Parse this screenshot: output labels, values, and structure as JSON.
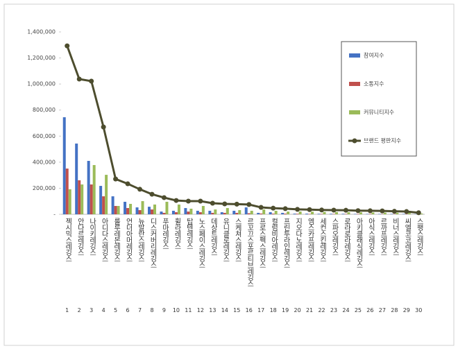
{
  "chart_data": {
    "type": "bar",
    "categories": [
      "젝시믹스레깅스",
      "안다르레깅스",
      "나이키레깅스",
      "아디다스레깅스",
      "룰루레몬레깅스",
      "언더아머레깅스",
      "뉴발란스레깅스",
      "디스커버리레깅스",
      "푸마레깅스",
      "휠라레깅스",
      "탑텐레깅스",
      "노스페이스레깅스",
      "데상트레깅스",
      "유니클로레깅스",
      "스케쳐스레깅스",
      "르꼬끄스포르티브레깅스",
      "프로스펙스레깅스",
      "컬럼비아레깅스",
      "프린투라인레깅스",
      "지오다노레깅스",
      "엠스카프레깅스",
      "세컨스킨레깅스",
      "스파오레깅스",
      "로라로라레깅스",
      "아키클래식레깅스",
      "아식스레깅스",
      "르까프레깅스",
      "비너스레깅스",
      "씨엘코코레깅스",
      "스팽스레깅스"
    ],
    "ranks": [
      1,
      2,
      3,
      4,
      5,
      6,
      7,
      8,
      9,
      10,
      11,
      12,
      13,
      14,
      15,
      16,
      17,
      18,
      19,
      20,
      21,
      22,
      23,
      24,
      25,
      26,
      27,
      28,
      29,
      30
    ],
    "series": [
      {
        "name": "참여지수",
        "color": "#4472c4",
        "type": "bar",
        "values": [
          745000,
          543000,
          410000,
          218000,
          138000,
          96000,
          53000,
          58000,
          21000,
          27000,
          48000,
          27000,
          27000,
          16000,
          27000,
          53000,
          11000,
          16000,
          11000,
          5000,
          5000,
          4000,
          4000,
          4000,
          3000,
          3000,
          3000,
          3000,
          3000,
          2000
        ]
      },
      {
        "name": "소통지수",
        "color": "#c0504d",
        "type": "bar",
        "values": [
          351000,
          261000,
          229000,
          138000,
          64000,
          48000,
          32000,
          37000,
          11000,
          16000,
          21000,
          16000,
          11000,
          11000,
          11000,
          8000,
          6000,
          5000,
          5000,
          4000,
          3000,
          3000,
          3000,
          3000,
          3000,
          3000,
          2000,
          2000,
          2000,
          1000
        ]
      },
      {
        "name": "커뮤니티지수",
        "color": "#9bbb59",
        "type": "bar",
        "values": [
          192000,
          229000,
          378000,
          303000,
          64000,
          80000,
          101000,
          75000,
          96000,
          75000,
          43000,
          64000,
          37000,
          48000,
          32000,
          27000,
          37000,
          27000,
          21000,
          21000,
          20000,
          18000,
          17000,
          16000,
          15000,
          14000,
          13000,
          12000,
          11000,
          6000
        ]
      },
      {
        "name": "브랜드 평판지수",
        "color": "#4d4d2e",
        "type": "line",
        "values": [
          1293000,
          1038000,
          1022000,
          670000,
          271000,
          234000,
          192000,
          154000,
          128000,
          106000,
          101000,
          101000,
          85000,
          80000,
          78000,
          75000,
          53000,
          47000,
          43000,
          38000,
          36000,
          33000,
          32000,
          31000,
          28000,
          27000,
          26000,
          23000,
          21000,
          12000
        ]
      }
    ],
    "ylim": [
      0,
      1400000
    ],
    "yticks": [
      {
        "value": 0,
        "label": "-"
      },
      {
        "value": 200000,
        "label": "200,000"
      },
      {
        "value": 400000,
        "label": "400,000"
      },
      {
        "value": 600000,
        "label": "600,000"
      },
      {
        "value": 800000,
        "label": "800,000"
      },
      {
        "value": 1000000,
        "label": "1,000,000"
      },
      {
        "value": 1200000,
        "label": "1,200,000"
      },
      {
        "value": 1400000,
        "label": "1,400,000"
      }
    ],
    "legend": "right"
  }
}
